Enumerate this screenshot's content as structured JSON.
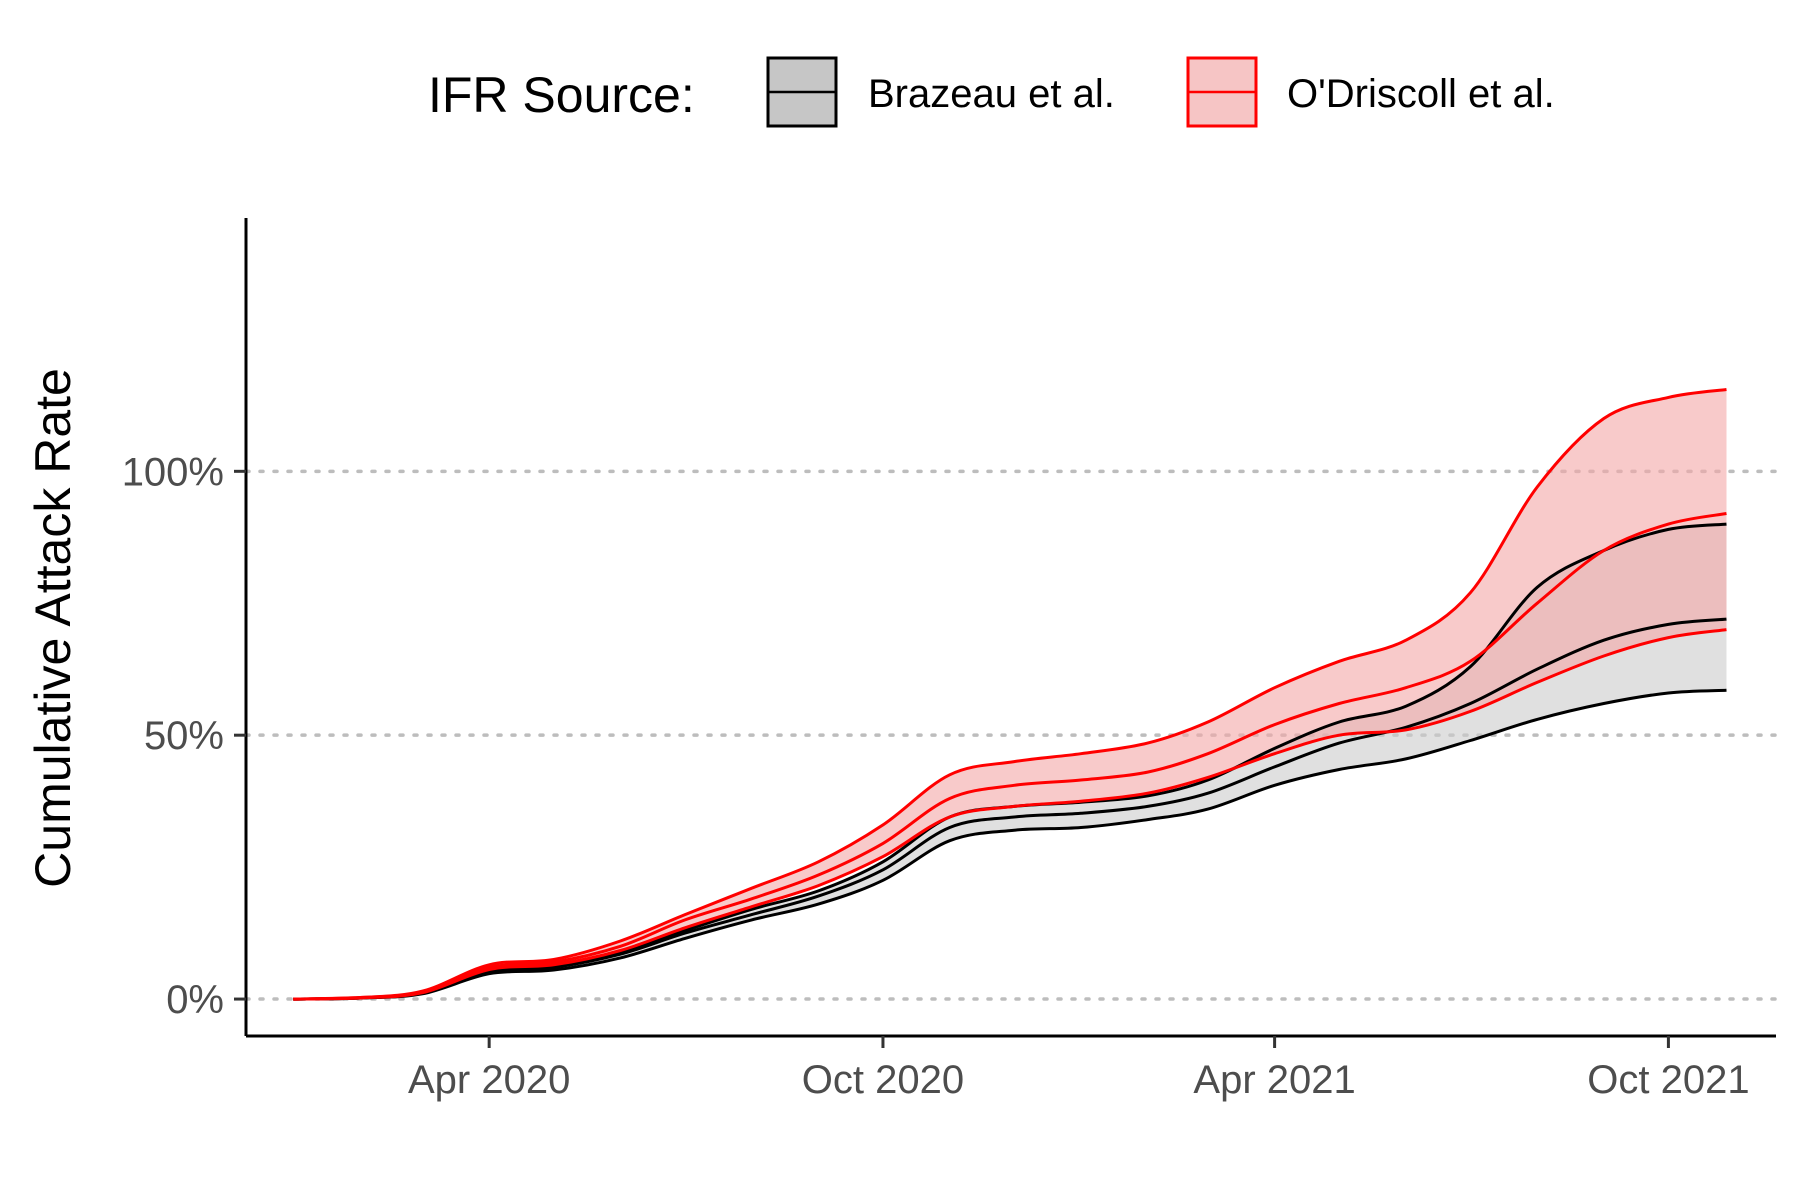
{
  "chart_data": {
    "type": "area",
    "title": "",
    "xlabel": "",
    "ylabel": "Cumulative Attack Rate",
    "x_ticks": [
      {
        "date": "2020-04-01",
        "label": "Apr 2020"
      },
      {
        "date": "2020-10-01",
        "label": "Oct 2020"
      },
      {
        "date": "2021-04-01",
        "label": "Apr 2021"
      },
      {
        "date": "2021-10-01",
        "label": "Oct 2021"
      }
    ],
    "y_ticks": [
      {
        "value": 0,
        "label": "0%"
      },
      {
        "value": 50,
        "label": "50%"
      },
      {
        "value": 100,
        "label": "100%"
      }
    ],
    "xlim": [
      "2019-12-10",
      "2021-11-20"
    ],
    "ylim": [
      -7,
      148
    ],
    "grid": "horizontal dotted",
    "legend": {
      "title": "IFR Source:",
      "position": "top"
    },
    "x": [
      "2020-01-01",
      "2020-02-01",
      "2020-03-01",
      "2020-04-01",
      "2020-05-01",
      "2020-06-01",
      "2020-07-01",
      "2020-08-01",
      "2020-09-01",
      "2020-10-01",
      "2020-11-01",
      "2020-12-01",
      "2021-01-01",
      "2021-02-01",
      "2021-03-01",
      "2021-04-01",
      "2021-05-01",
      "2021-06-01",
      "2021-07-01",
      "2021-08-01",
      "2021-09-01",
      "2021-10-01",
      "2021-10-28"
    ],
    "series": [
      {
        "name": "Brazeau et al.",
        "color": "#000000",
        "fill": "#cccccc",
        "upper": [
          0,
          0.2,
          1.2,
          5.5,
          6.5,
          9,
          13,
          17,
          20.5,
          26,
          34.5,
          36.5,
          37.3,
          38.5,
          41.5,
          47.5,
          52.5,
          55.5,
          63,
          78,
          85,
          89,
          90
        ],
        "median": [
          0,
          0.2,
          1.1,
          5.1,
          6,
          8.5,
          12.5,
          16,
          19.5,
          24.5,
          32.5,
          34.5,
          35.2,
          36.5,
          39,
          44,
          48.5,
          51.5,
          56,
          62.5,
          68,
          71,
          72
        ],
        "lower": [
          0,
          0.2,
          1.0,
          4.8,
          5.5,
          7.8,
          11.5,
          15,
          18,
          22.5,
          30,
          32,
          32.5,
          34,
          36,
          40.5,
          43.5,
          45.5,
          49,
          53,
          56,
          58,
          58.5
        ]
      },
      {
        "name": "O'Driscoll et al.",
        "color": "#ff0000",
        "fill": "#f4a6a6",
        "upper": [
          0,
          0.3,
          1.5,
          6.5,
          7.5,
          11,
          16,
          21,
          26,
          33,
          42.5,
          45,
          46.5,
          48.5,
          52.5,
          59,
          64,
          68,
          77,
          97,
          110,
          114,
          115.5
        ],
        "median": [
          0,
          0.3,
          1.3,
          6,
          7,
          10,
          15,
          19,
          23.5,
          29.5,
          38,
          40.5,
          41.5,
          43,
          46.5,
          52,
          56,
          59,
          64,
          75,
          85,
          90,
          92
        ],
        "lower": [
          0,
          0.2,
          1.2,
          5.6,
          6.5,
          9.2,
          13.5,
          17.5,
          21.5,
          27,
          34.5,
          36.5,
          37.5,
          39,
          42,
          46.5,
          50,
          51,
          54.5,
          60,
          65,
          68.5,
          70
        ]
      }
    ]
  }
}
